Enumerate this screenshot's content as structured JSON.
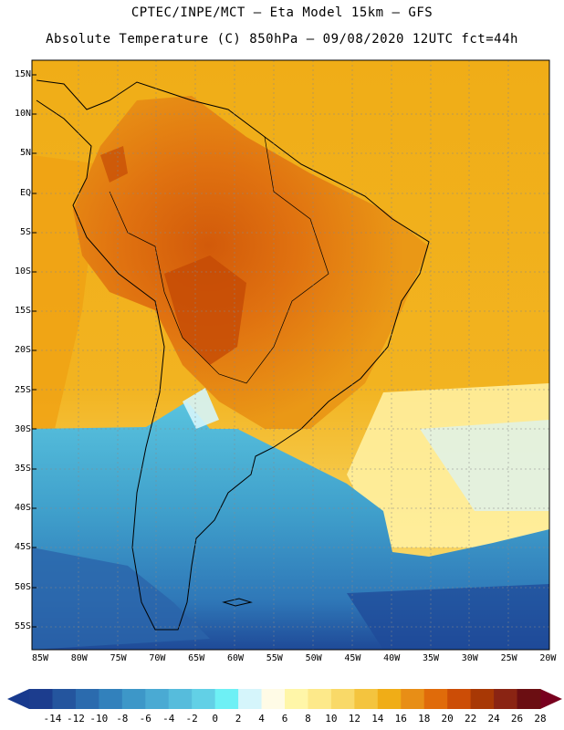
{
  "title_line1": "CPTEC/INPE/MCT –  Eta Model 15km – GFS",
  "title_line2": "Absolute Temperature (C) 850hPa – 09/08/2020 12UTC fct=44h",
  "lat_labels": [
    "15N",
    "10N",
    "5N",
    "EQ",
    "5S",
    "10S",
    "15S",
    "20S",
    "25S",
    "30S",
    "35S",
    "40S",
    "45S",
    "50S",
    "55S"
  ],
  "lon_labels": [
    "85W",
    "80W",
    "75W",
    "70W",
    "65W",
    "60W",
    "55W",
    "50W",
    "45W",
    "40W",
    "35W",
    "30W",
    "25W",
    "20W"
  ],
  "colorbar": {
    "labels": [
      "-14",
      "-12",
      "-10",
      "-8",
      "-6",
      "-4",
      "-2",
      "0",
      "2",
      "4",
      "6",
      "8",
      "10",
      "12",
      "14",
      "16",
      "18",
      "20",
      "22",
      "24",
      "26",
      "28"
    ],
    "colors": [
      "#1c3d8e",
      "#24559e",
      "#2b6bae",
      "#3281bc",
      "#3d97c8",
      "#4aaad3",
      "#56bcdc",
      "#62d0e6",
      "#6ef0f5",
      "#d5f5fb",
      "#fffbe6",
      "#fff6a8",
      "#fde98a",
      "#f9d968",
      "#f4c43e",
      "#f0ad17",
      "#e88e16",
      "#e06b0a",
      "#cc4d06",
      "#a83805",
      "#8a2413",
      "#6b0e12"
    ],
    "low_arrow_color": "#183a8e",
    "high_arrow_color": "#78001e"
  }
}
